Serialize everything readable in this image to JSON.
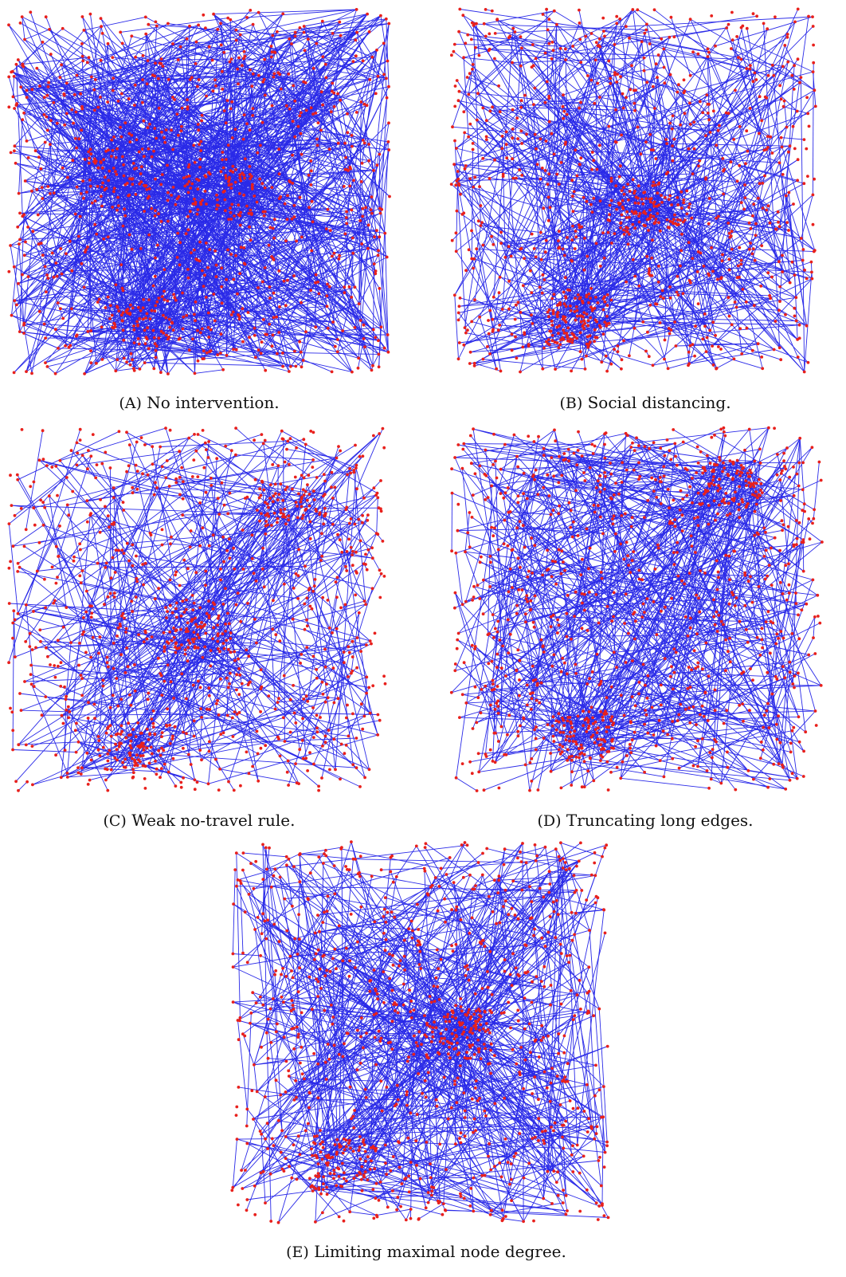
{
  "figure": {
    "panels": [
      {
        "id": "a",
        "letter": "(A)",
        "caption": "No intervention.",
        "edge_count": 1700,
        "node_count": 1000,
        "seed": 11,
        "hotspots": [
          [
            0.35,
            0.85
          ],
          [
            0.55,
            0.5
          ],
          [
            0.28,
            0.45
          ]
        ]
      },
      {
        "id": "b",
        "letter": "(B)",
        "caption": "Social distancing.",
        "edge_count": 950,
        "node_count": 1000,
        "seed": 22,
        "hotspots": [
          [
            0.35,
            0.85
          ],
          [
            0.55,
            0.55
          ]
        ]
      },
      {
        "id": "c",
        "letter": "(C)",
        "caption": "Weak no-travel rule.",
        "edge_count": 700,
        "node_count": 1000,
        "seed": 33,
        "hotspots": [
          [
            0.35,
            0.88
          ],
          [
            0.5,
            0.55
          ],
          [
            0.75,
            0.2
          ]
        ]
      },
      {
        "id": "d",
        "letter": "(D)",
        "caption": "Truncating long edges.",
        "edge_count": 900,
        "node_count": 1000,
        "seed": 44,
        "hotspots": [
          [
            0.35,
            0.85
          ],
          [
            0.75,
            0.15
          ]
        ]
      },
      {
        "id": "e",
        "letter": "(E)",
        "caption": "Limiting maximal node degree.",
        "edge_count": 950,
        "node_count": 1000,
        "seed": 55,
        "hotspots": [
          [
            0.3,
            0.85
          ],
          [
            0.6,
            0.5
          ]
        ]
      }
    ],
    "colors": {
      "edge": "#2a2ae8",
      "node": "#e8201c"
    }
  }
}
